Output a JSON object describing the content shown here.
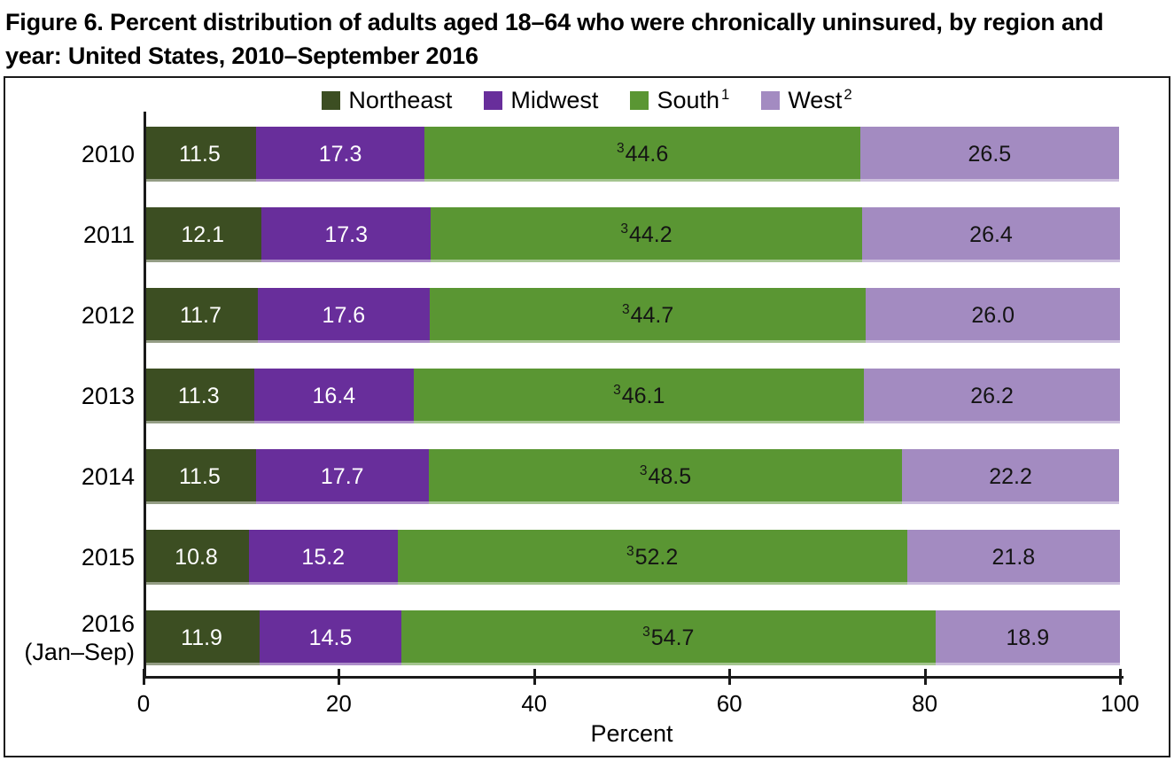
{
  "figure": {
    "title": "Figure 6. Percent distribution of adults aged 18–64 who were chronically uninsured, by region and year: United States, 2010–September 2016"
  },
  "chart_data": {
    "type": "bar",
    "orientation": "horizontal",
    "stacked": true,
    "title": "Figure 6. Percent distribution of adults aged 18–64 who were chronically uninsured, by region and year: United States, 2010–September 2016",
    "categories": [
      {
        "label": "2010",
        "sublabel": ""
      },
      {
        "label": "2011",
        "sublabel": ""
      },
      {
        "label": "2012",
        "sublabel": ""
      },
      {
        "label": "2013",
        "sublabel": ""
      },
      {
        "label": "2014",
        "sublabel": ""
      },
      {
        "label": "2015",
        "sublabel": ""
      },
      {
        "label": "2016",
        "sublabel": "(Jan–Sep)"
      }
    ],
    "series": [
      {
        "name": "Northeast",
        "name_sup": "",
        "color": "#3C4E22",
        "label_color": "#ffffff",
        "value_sup": "",
        "values": [
          11.5,
          12.1,
          11.7,
          11.3,
          11.5,
          10.8,
          11.9
        ]
      },
      {
        "name": "Midwest",
        "name_sup": "",
        "color": "#682E9B",
        "label_color": "#ffffff",
        "value_sup": "",
        "values": [
          17.3,
          17.3,
          17.6,
          16.4,
          17.7,
          15.2,
          14.5
        ]
      },
      {
        "name": "South",
        "name_sup": "1",
        "color": "#5A9633",
        "label_color": "#141414",
        "value_sup": "3",
        "values": [
          44.6,
          44.2,
          44.7,
          46.1,
          48.5,
          52.2,
          54.7
        ]
      },
      {
        "name": "West",
        "name_sup": "2",
        "color": "#A38BC1",
        "label_color": "#141414",
        "value_sup": "",
        "values": [
          26.5,
          26.4,
          26.0,
          26.2,
          22.2,
          21.8,
          18.9
        ]
      }
    ],
    "xlabel": "Percent",
    "x_ticks": [
      0,
      20,
      40,
      60,
      80,
      100
    ],
    "xlim": [
      0,
      100
    ],
    "legend_position": "top",
    "grid": false
  }
}
